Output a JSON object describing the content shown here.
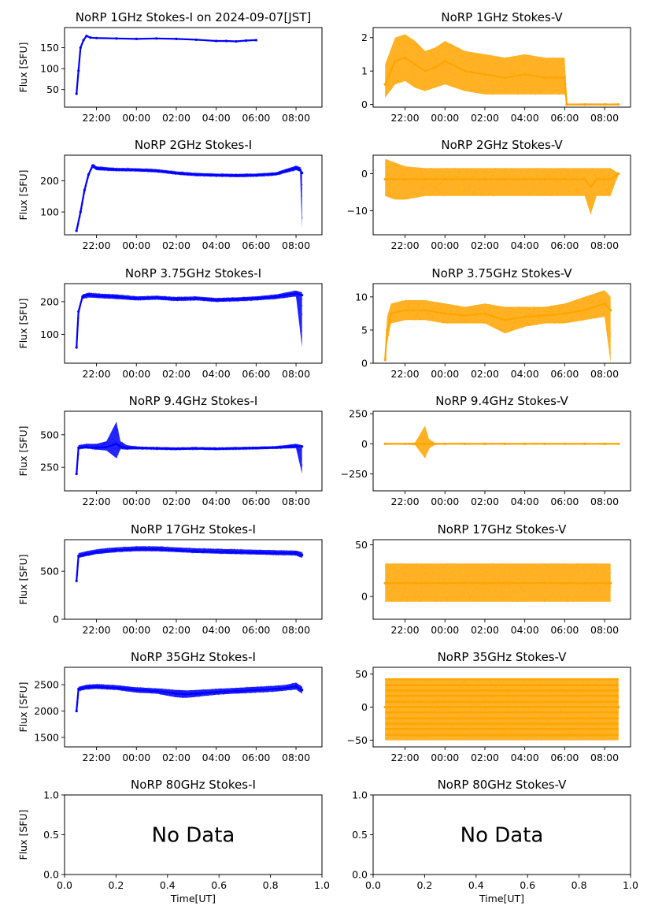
{
  "x_axis_label": "Time[UT]",
  "no_data_label": "No Data",
  "colors": {
    "stokes_i": "#0000ff",
    "stokes_v": "#ffa500"
  },
  "chart_data": [
    {
      "type": "scatter",
      "title": "NoRP 1GHz Stokes-I on 2024-09-07[JST]",
      "ylabel": "Flux [SFU]",
      "color": "#0000ff",
      "xlim": [
        20.4,
        33.3
      ],
      "ylim": [
        8,
        198
      ],
      "xticks": [
        22,
        24,
        26,
        28,
        30,
        32
      ],
      "xticklabels": [
        "22:00",
        "00:00",
        "02:00",
        "04:00",
        "06:00",
        "08:00"
      ],
      "yticks": [
        50,
        100,
        150
      ],
      "yticklabels": [
        "50",
        "100",
        "150"
      ],
      "x": [
        21.0,
        21.1,
        21.2,
        21.35,
        21.5,
        21.7,
        22.0,
        23.0,
        24.0,
        25.0,
        26.0,
        27.0,
        28.0,
        28.5,
        29.0,
        29.5,
        30.0
      ],
      "y": [
        40,
        95,
        150,
        168,
        178,
        174,
        173,
        172,
        171,
        172,
        171,
        169,
        166,
        166,
        165,
        167,
        168
      ]
    },
    {
      "type": "scatter",
      "title": "NoRP 1GHz Stokes-V",
      "ylabel": "",
      "color": "#ffa500",
      "xlim": [
        20.4,
        33.3
      ],
      "ylim": [
        -0.08,
        2.3
      ],
      "xticks": [
        22,
        24,
        26,
        28,
        30,
        32
      ],
      "xticklabels": [
        "22:00",
        "00:00",
        "02:00",
        "04:00",
        "06:00",
        "08:00"
      ],
      "yticks": [
        0,
        1,
        2
      ],
      "yticklabels": [
        "0",
        "1",
        "2"
      ],
      "x": [
        21.0,
        21.5,
        22.0,
        22.5,
        23.0,
        23.5,
        24.0,
        25.0,
        26.0,
        27.0,
        28.0,
        29.0,
        30.0,
        30.1,
        31.0,
        32.0,
        32.7
      ],
      "y": [
        0.6,
        1.3,
        1.4,
        1.2,
        1.0,
        1.1,
        1.3,
        1.0,
        0.9,
        0.8,
        0.9,
        0.8,
        0.8,
        0.0,
        0.0,
        0.0,
        0.0
      ],
      "y_low": [
        0.2,
        0.6,
        0.7,
        0.5,
        0.4,
        0.5,
        0.6,
        0.4,
        0.3,
        0.3,
        0.3,
        0.3,
        0.3,
        0.0,
        0.0,
        0.0,
        0.0
      ],
      "y_high": [
        1.2,
        2.0,
        2.1,
        1.9,
        1.6,
        1.7,
        1.9,
        1.6,
        1.5,
        1.4,
        1.5,
        1.4,
        1.4,
        0.02,
        0.02,
        0.02,
        0.02
      ]
    },
    {
      "type": "scatter",
      "title": "NoRP 2GHz Stokes-I",
      "ylabel": "Flux [SFU]",
      "color": "#0000ff",
      "xlim": [
        20.4,
        33.3
      ],
      "ylim": [
        27,
        282
      ],
      "xticks": [
        22,
        24,
        26,
        28,
        30,
        32
      ],
      "xticklabels": [
        "22:00",
        "00:00",
        "02:00",
        "04:00",
        "06:00",
        "08:00"
      ],
      "yticks": [
        100,
        200
      ],
      "yticklabels": [
        "100",
        "200"
      ],
      "x": [
        21.0,
        21.2,
        21.4,
        21.6,
        21.8,
        22.0,
        23.0,
        24.0,
        25.0,
        26.0,
        27.0,
        28.0,
        29.0,
        30.0,
        31.0,
        31.5,
        32.0,
        32.2,
        32.3
      ],
      "y": [
        40,
        100,
        170,
        220,
        248,
        240,
        236,
        235,
        232,
        225,
        220,
        218,
        217,
        218,
        222,
        232,
        240,
        236,
        225
      ],
      "y_low": [
        40,
        98,
        168,
        216,
        242,
        234,
        231,
        230,
        227,
        220,
        215,
        213,
        212,
        213,
        217,
        226,
        234,
        230,
        45
      ],
      "y_high": [
        42,
        102,
        172,
        224,
        254,
        246,
        241,
        240,
        237,
        230,
        225,
        223,
        222,
        223,
        227,
        238,
        248,
        244,
        230
      ]
    },
    {
      "type": "scatter",
      "title": "NoRP 2GHz Stokes-V",
      "ylabel": "",
      "color": "#ffa500",
      "xlim": [
        20.4,
        33.3
      ],
      "ylim": [
        -16.5,
        5
      ],
      "xticks": [
        22,
        24,
        26,
        28,
        30,
        32
      ],
      "xticklabels": [
        "22:00",
        "00:00",
        "02:00",
        "04:00",
        "06:00",
        "08:00"
      ],
      "yticks": [
        -10,
        0
      ],
      "yticklabels": [
        "−10",
        "0"
      ],
      "x": [
        21.0,
        21.5,
        22.0,
        23.0,
        24.0,
        25.0,
        26.0,
        27.0,
        28.0,
        29.0,
        30.0,
        31.0,
        31.3,
        31.6,
        32.0,
        32.3,
        32.7
      ],
      "y": [
        -1.5,
        -1.5,
        -1.5,
        -1.5,
        -1.5,
        -1.5,
        -1.5,
        -1.5,
        -1.5,
        -1.5,
        -1.5,
        -1.5,
        -3.5,
        -1.5,
        -1.5,
        -1.5,
        0
      ],
      "y_low": [
        -6,
        -7,
        -7,
        -6,
        -6,
        -6,
        -6,
        -6,
        -6,
        -6,
        -6,
        -6,
        -11,
        -6,
        -6,
        -6,
        0
      ],
      "y_high": [
        4,
        3,
        2,
        1.5,
        1.5,
        1.5,
        1.5,
        1.5,
        1.5,
        1.5,
        1.5,
        1.5,
        1.5,
        1.5,
        1.5,
        1.5,
        0
      ]
    },
    {
      "type": "scatter",
      "title": "NoRP 3.75GHz Stokes-I",
      "ylabel": "Flux [SFU]",
      "color": "#0000ff",
      "xlim": [
        20.4,
        33.3
      ],
      "ylim": [
        12,
        255
      ],
      "xticks": [
        22,
        24,
        26,
        28,
        30,
        32
      ],
      "xticklabels": [
        "22:00",
        "00:00",
        "02:00",
        "04:00",
        "06:00",
        "08:00"
      ],
      "yticks": [
        100,
        200
      ],
      "yticklabels": [
        "100",
        "200"
      ],
      "x": [
        21.0,
        21.1,
        21.3,
        21.6,
        22.0,
        23.0,
        24.0,
        25.0,
        26.0,
        27.0,
        28.0,
        29.0,
        30.0,
        31.0,
        32.0,
        32.3
      ],
      "y": [
        60,
        170,
        215,
        220,
        218,
        215,
        210,
        212,
        208,
        210,
        205,
        207,
        210,
        215,
        225,
        220
      ],
      "y_low": [
        60,
        165,
        208,
        213,
        211,
        208,
        204,
        206,
        202,
        204,
        199,
        201,
        204,
        208,
        216,
        60
      ],
      "y_high": [
        62,
        175,
        222,
        227,
        225,
        222,
        216,
        218,
        214,
        216,
        211,
        213,
        216,
        222,
        234,
        228
      ]
    },
    {
      "type": "scatter",
      "title": "NoRP 3.75GHz Stokes-V",
      "ylabel": "",
      "color": "#ffa500",
      "xlim": [
        20.4,
        33.3
      ],
      "ylim": [
        0,
        12
      ],
      "xticks": [
        22,
        24,
        26,
        28,
        30,
        32
      ],
      "xticklabels": [
        "22:00",
        "00:00",
        "02:00",
        "04:00",
        "06:00",
        "08:00"
      ],
      "yticks": [
        0,
        5,
        10
      ],
      "yticklabels": [
        "0",
        "5",
        "10"
      ],
      "x": [
        21.0,
        21.1,
        21.3,
        22.0,
        23.0,
        24.0,
        25.0,
        26.0,
        27.0,
        28.0,
        29.0,
        30.0,
        31.0,
        32.0,
        32.3
      ],
      "y": [
        0.5,
        5,
        7.5,
        8,
        8,
        7.5,
        7.2,
        7.5,
        6.5,
        7,
        7.2,
        7.5,
        8,
        9,
        8
      ],
      "y_low": [
        0,
        3,
        6,
        6.5,
        6.5,
        6,
        6,
        6,
        4.5,
        5.5,
        6,
        6,
        6.5,
        7,
        0
      ],
      "y_high": [
        1,
        7,
        9,
        9.5,
        9.5,
        9,
        8.5,
        9,
        8.5,
        8.5,
        8.5,
        9,
        10,
        11,
        10
      ]
    },
    {
      "type": "scatter",
      "title": "NoRP 9.4GHz Stokes-I",
      "ylabel": "Flux [SFU]",
      "color": "#0000ff",
      "xlim": [
        20.4,
        33.3
      ],
      "ylim": [
        70,
        680
      ],
      "xticks": [
        22,
        24,
        26,
        28,
        30,
        32
      ],
      "xticklabels": [
        "22:00",
        "00:00",
        "02:00",
        "04:00",
        "06:00",
        "08:00"
      ],
      "yticks": [
        250,
        500
      ],
      "yticklabels": [
        "250",
        "500"
      ],
      "x": [
        21.0,
        21.1,
        21.5,
        22.0,
        22.5,
        23.0,
        23.2,
        23.5,
        24.0,
        25.0,
        26.0,
        27.0,
        28.0,
        29.0,
        30.0,
        31.0,
        32.0,
        32.3
      ],
      "y": [
        200,
        400,
        405,
        400,
        405,
        430,
        410,
        400,
        398,
        395,
        393,
        395,
        392,
        395,
        398,
        402,
        412,
        410
      ],
      "y_low": [
        200,
        390,
        395,
        385,
        380,
        320,
        390,
        385,
        388,
        385,
        383,
        385,
        382,
        385,
        388,
        392,
        398,
        200
      ],
      "y_high": [
        205,
        420,
        430,
        430,
        450,
        600,
        450,
        420,
        410,
        405,
        403,
        405,
        402,
        405,
        408,
        412,
        430,
        420
      ]
    },
    {
      "type": "scatter",
      "title": "NoRP 9.4GHz Stokes-V",
      "ylabel": "",
      "color": "#ffa500",
      "xlim": [
        20.4,
        33.3
      ],
      "ylim": [
        -390,
        270
      ],
      "xticks": [
        22,
        24,
        26,
        28,
        30,
        32
      ],
      "xticklabels": [
        "22:00",
        "00:00",
        "02:00",
        "04:00",
        "06:00",
        "08:00"
      ],
      "yticks": [
        -250,
        0,
        250
      ],
      "yticklabels": [
        "−250",
        "0",
        "250"
      ],
      "x": [
        21.0,
        22.0,
        22.5,
        23.0,
        23.2,
        23.5,
        24.0,
        25.0,
        26.0,
        27.0,
        28.0,
        29.0,
        30.0,
        31.0,
        32.0,
        32.7
      ],
      "y": [
        0,
        0,
        0,
        0,
        0,
        0,
        0,
        0,
        0,
        0,
        0,
        0,
        0,
        0,
        0,
        0
      ],
      "y_low": [
        -5,
        -5,
        -10,
        -120,
        -40,
        -5,
        -5,
        -5,
        -5,
        -5,
        -5,
        -5,
        -5,
        -5,
        -5,
        -3
      ],
      "y_high": [
        5,
        5,
        10,
        150,
        40,
        5,
        5,
        5,
        5,
        5,
        5,
        5,
        5,
        5,
        5,
        3
      ]
    },
    {
      "type": "scatter",
      "title": "NoRP 17GHz Stokes-I",
      "ylabel": "Flux [SFU]",
      "color": "#0000ff",
      "xlim": [
        20.4,
        33.3
      ],
      "ylim": [
        0,
        830
      ],
      "xticks": [
        22,
        24,
        26,
        28,
        30,
        32
      ],
      "xticklabels": [
        "22:00",
        "00:00",
        "02:00",
        "04:00",
        "06:00",
        "08:00"
      ],
      "yticks": [
        0,
        500
      ],
      "yticklabels": [
        "0",
        "500"
      ],
      "x": [
        21.0,
        21.1,
        21.5,
        22.0,
        23.0,
        24.0,
        25.0,
        26.0,
        27.0,
        28.0,
        29.0,
        30.0,
        31.0,
        32.0,
        32.3
      ],
      "y": [
        400,
        660,
        680,
        700,
        720,
        730,
        730,
        720,
        710,
        705,
        700,
        695,
        690,
        690,
        670
      ],
      "y_low": [
        400,
        640,
        660,
        680,
        700,
        710,
        710,
        700,
        690,
        685,
        680,
        675,
        670,
        665,
        640
      ],
      "y_high": [
        420,
        690,
        710,
        730,
        750,
        760,
        760,
        750,
        740,
        735,
        730,
        725,
        720,
        715,
        700
      ]
    },
    {
      "type": "scatter",
      "title": "NoRP 17GHz Stokes-V",
      "ylabel": "",
      "color": "#ffa500",
      "xlim": [
        20.4,
        33.3
      ],
      "ylim": [
        -22,
        55
      ],
      "xticks": [
        22,
        24,
        26,
        28,
        30,
        32
      ],
      "xticklabels": [
        "22:00",
        "00:00",
        "02:00",
        "04:00",
        "06:00",
        "08:00"
      ],
      "yticks": [
        0,
        50
      ],
      "yticklabels": [
        "0",
        "50"
      ],
      "x": [
        21.0,
        22.0,
        23.0,
        24.0,
        25.0,
        26.0,
        27.0,
        28.0,
        29.0,
        30.0,
        31.0,
        32.0,
        32.3
      ],
      "y": [
        13,
        13,
        13,
        13,
        13,
        13,
        13,
        13,
        13,
        13,
        13,
        13,
        13
      ],
      "y_low": [
        -5,
        -5,
        -5,
        -5,
        -5,
        -5,
        -5,
        -5,
        -5,
        -5,
        -5,
        -5,
        -5
      ],
      "y_high": [
        32,
        32,
        32,
        32,
        32,
        32,
        32,
        32,
        32,
        32,
        32,
        32,
        32
      ]
    },
    {
      "type": "scatter",
      "title": "NoRP 35GHz Stokes-I",
      "ylabel": "Flux [SFU]",
      "color": "#0000ff",
      "xlim": [
        20.4,
        33.3
      ],
      "ylim": [
        1320,
        2830
      ],
      "xticks": [
        22,
        24,
        26,
        28,
        30,
        32
      ],
      "xticklabels": [
        "22:00",
        "00:00",
        "02:00",
        "04:00",
        "06:00",
        "08:00"
      ],
      "yticks": [
        1500,
        2000,
        2500
      ],
      "yticklabels": [
        "1500",
        "2000",
        "2500"
      ],
      "x": [
        21.0,
        21.1,
        21.5,
        22.0,
        23.0,
        24.0,
        25.0,
        26.0,
        26.5,
        27.0,
        28.0,
        29.0,
        30.0,
        31.0,
        31.5,
        32.0,
        32.3
      ],
      "y": [
        2000,
        2420,
        2450,
        2460,
        2440,
        2400,
        2380,
        2330,
        2320,
        2330,
        2360,
        2380,
        2400,
        2420,
        2440,
        2470,
        2400
      ],
      "y_low": [
        2000,
        2380,
        2410,
        2420,
        2400,
        2350,
        2330,
        2260,
        2250,
        2270,
        2310,
        2330,
        2350,
        2370,
        2390,
        2410,
        2330
      ],
      "y_high": [
        2050,
        2460,
        2500,
        2510,
        2490,
        2450,
        2430,
        2400,
        2390,
        2400,
        2420,
        2440,
        2460,
        2480,
        2500,
        2540,
        2460
      ]
    },
    {
      "type": "scatter",
      "title": "NoRP 35GHz Stokes-V",
      "ylabel": "",
      "color": "#ffa500",
      "xlim": [
        20.4,
        33.3
      ],
      "ylim": [
        -60,
        60
      ],
      "xticks": [
        22,
        24,
        26,
        28,
        30,
        32
      ],
      "xticklabels": [
        "22:00",
        "00:00",
        "02:00",
        "04:00",
        "06:00",
        "08:00"
      ],
      "yticks": [
        -50,
        0,
        50
      ],
      "yticklabels": [
        "−50",
        "0",
        "50"
      ],
      "x": [
        21.0,
        22.0,
        24.0,
        26.0,
        28.0,
        30.0,
        32.0,
        32.7
      ],
      "y": [
        0,
        0,
        0,
        0,
        0,
        0,
        0,
        0
      ],
      "y_low": [
        -50,
        -50,
        -50,
        -50,
        -50,
        -50,
        -50,
        -50
      ],
      "y_high": [
        42,
        42,
        42,
        42,
        42,
        42,
        42,
        42
      ],
      "levels": [
        -42,
        -33,
        -25,
        -17,
        -8,
        0,
        8,
        17,
        25,
        33,
        42
      ]
    },
    {
      "type": "scatter",
      "title": "NoRP 80GHz Stokes-I",
      "ylabel": "Flux [SFU]",
      "xlabel": "Time[UT]",
      "no_data": true,
      "xlim": [
        0,
        1
      ],
      "ylim": [
        0,
        1
      ],
      "xticks": [
        0,
        0.2,
        0.4,
        0.6,
        0.8,
        1.0
      ],
      "xticklabels": [
        "0.0",
        "0.2",
        "0.4",
        "0.6",
        "0.8",
        "1.0"
      ],
      "yticks": [
        0,
        0.5,
        1.0
      ],
      "yticklabels": [
        "0.0",
        "0.5",
        "1.0"
      ]
    },
    {
      "type": "scatter",
      "title": "NoRP 80GHz Stokes-V",
      "ylabel": "",
      "xlabel": "Time[UT]",
      "no_data": true,
      "xlim": [
        0,
        1
      ],
      "ylim": [
        0,
        1
      ],
      "xticks": [
        0,
        0.2,
        0.4,
        0.6,
        0.8,
        1.0
      ],
      "xticklabels": [
        "0.0",
        "0.2",
        "0.4",
        "0.6",
        "0.8",
        "1.0"
      ],
      "yticks": [
        0,
        0.5,
        1.0
      ],
      "yticklabels": [
        "0.0",
        "0.5",
        "1.0"
      ]
    }
  ]
}
